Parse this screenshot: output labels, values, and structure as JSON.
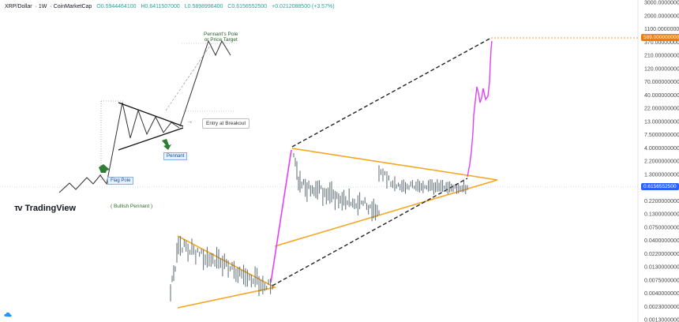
{
  "header": {
    "symbol": "XRP/Dollar",
    "interval": "1W",
    "source": "CoinMarketCap",
    "open": "O0.5944464100",
    "high": "H0.6411507000",
    "low": "L0.5898998400",
    "close": "C0.6156552500",
    "change": "+0.0212088500 (+3.57%)"
  },
  "branding": {
    "name": "TradingView"
  },
  "diagram": {
    "title": "( Bullish Pennant )",
    "pole_target": "Pennant's Pole\nor Price Target",
    "pole_target_line1": "Pennant's Pole",
    "pole_target_line2": "or Price Target",
    "entry": "Entry at Breakout",
    "flag_pole": "Flag Pole",
    "pennant": "Pennant"
  },
  "price_axis": {
    "ticks": [
      "3000.0000000000",
      "2000.0000000000",
      "1100.0000000000",
      "370.0000000000",
      "210.0000000000",
      "120.0000000000",
      "70.0000000000",
      "40.0000000000",
      "22.0000000000",
      "13.0000000000",
      "7.5000000000",
      "4.0000000000",
      "2.2000000000",
      "1.3000000000",
      "0.4000000000",
      "0.2200000000",
      "0.1300000000",
      "0.0750000000",
      "0.0400000000",
      "0.0220000000",
      "0.0130000000",
      "0.0075000000",
      "0.0040000000",
      "0.0023000000",
      "0.0013000000"
    ],
    "target_label": "589.0000000000",
    "current_label": "0.6156552500"
  },
  "colors": {
    "triangle": "#f5a623",
    "dashed": "#222222",
    "pump": "#e040fb",
    "candles": "#5b6b73",
    "target": "#f57c00",
    "current": "#2962ff"
  }
}
